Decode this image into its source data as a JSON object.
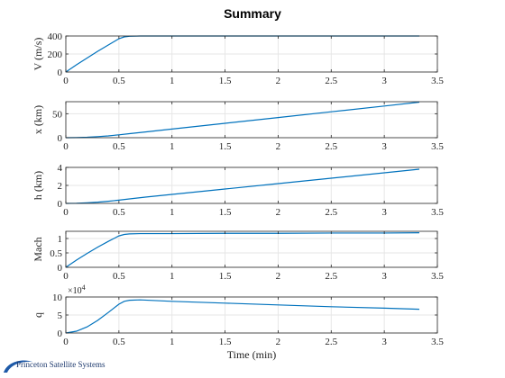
{
  "title": "Summary",
  "logo": {
    "text": "Princeton Satellite Systems",
    "color": "#1e5aa8"
  },
  "colors": {
    "line": "#0072bd",
    "grid": "#e6e6e6",
    "axis": "#262626"
  },
  "chart_data": [
    {
      "type": "line",
      "ylabel": "V (m/s)",
      "xlabel": "",
      "xlim": [
        0,
        3.5
      ],
      "ylim": [
        0,
        400
      ],
      "xticks": [
        "0",
        "0.5",
        "1",
        "1.5",
        "2",
        "2.5",
        "3",
        "3.5"
      ],
      "yticks": [
        "0",
        "200",
        "400"
      ],
      "grid": true,
      "series": [
        {
          "x": [
            0,
            0.1,
            0.2,
            0.3,
            0.4,
            0.5,
            0.55,
            0.6,
            0.7,
            1.0,
            1.5,
            2.0,
            2.5,
            3.0,
            3.33
          ],
          "y": [
            0,
            80,
            155,
            230,
            300,
            370,
            390,
            397,
            400,
            400,
            400,
            400,
            400,
            400,
            400
          ]
        }
      ]
    },
    {
      "type": "line",
      "ylabel": "x (km)",
      "xlabel": "",
      "xlim": [
        0,
        3.5
      ],
      "ylim": [
        0,
        75
      ],
      "xticks": [
        "0",
        "0.5",
        "1",
        "1.5",
        "2",
        "2.5",
        "3",
        "3.5"
      ],
      "yticks": [
        "0",
        "50"
      ],
      "grid": true,
      "series": [
        {
          "x": [
            0,
            0.1,
            0.2,
            0.3,
            0.4,
            0.5,
            0.6,
            0.75,
            1.0,
            1.5,
            2.0,
            2.5,
            3.0,
            3.33
          ],
          "y": [
            0,
            0.3,
            1.0,
            2.2,
            3.8,
            6.0,
            8.5,
            12,
            18,
            30,
            42,
            54,
            66,
            74
          ]
        }
      ]
    },
    {
      "type": "line",
      "ylabel": "h (km)",
      "xlabel": "",
      "xlim": [
        0,
        3.5
      ],
      "ylim": [
        0,
        4
      ],
      "xticks": [
        "0",
        "0.5",
        "1",
        "1.5",
        "2",
        "2.5",
        "3",
        "3.5"
      ],
      "yticks": [
        "0",
        "2",
        "4"
      ],
      "grid": true,
      "series": [
        {
          "x": [
            0,
            0.1,
            0.2,
            0.3,
            0.4,
            0.5,
            0.6,
            0.75,
            1.0,
            1.5,
            2.0,
            2.5,
            3.0,
            3.33
          ],
          "y": [
            0,
            0.02,
            0.07,
            0.14,
            0.24,
            0.36,
            0.5,
            0.7,
            1.0,
            1.6,
            2.2,
            2.8,
            3.4,
            3.8
          ]
        }
      ]
    },
    {
      "type": "line",
      "ylabel": "Mach",
      "xlabel": "",
      "xlim": [
        0,
        3.5
      ],
      "ylim": [
        0,
        1.25
      ],
      "xticks": [
        "0",
        "0.5",
        "1",
        "1.5",
        "2",
        "2.5",
        "3",
        "3.5"
      ],
      "yticks": [
        "0",
        "0.5",
        "1"
      ],
      "grid": true,
      "series": [
        {
          "x": [
            0,
            0.1,
            0.2,
            0.3,
            0.4,
            0.5,
            0.55,
            0.6,
            0.7,
            1.0,
            1.5,
            2.0,
            2.5,
            3.0,
            3.33
          ],
          "y": [
            0,
            0.25,
            0.48,
            0.7,
            0.9,
            1.09,
            1.14,
            1.16,
            1.17,
            1.17,
            1.18,
            1.18,
            1.19,
            1.19,
            1.2
          ]
        }
      ]
    },
    {
      "type": "line",
      "ylabel": "q",
      "xlabel": "Time (min)",
      "xlim": [
        0,
        3.5
      ],
      "ylim": [
        0,
        100000
      ],
      "exponent_label": "×10",
      "exponent_power": "4",
      "xticks": [
        "0",
        "0.5",
        "1",
        "1.5",
        "2",
        "2.5",
        "3",
        "3.5"
      ],
      "yticks": [
        "0",
        "5",
        "10"
      ],
      "ytick_values": [
        0,
        50000,
        100000
      ],
      "grid": true,
      "series": [
        {
          "x": [
            0,
            0.1,
            0.2,
            0.3,
            0.4,
            0.5,
            0.55,
            0.6,
            0.7,
            1.0,
            1.5,
            2.0,
            2.5,
            3.0,
            3.33
          ],
          "y": [
            0,
            5000,
            17000,
            35000,
            57000,
            80000,
            88000,
            91000,
            92000,
            88000,
            83000,
            78000,
            73000,
            69000,
            66000
          ]
        }
      ]
    }
  ]
}
